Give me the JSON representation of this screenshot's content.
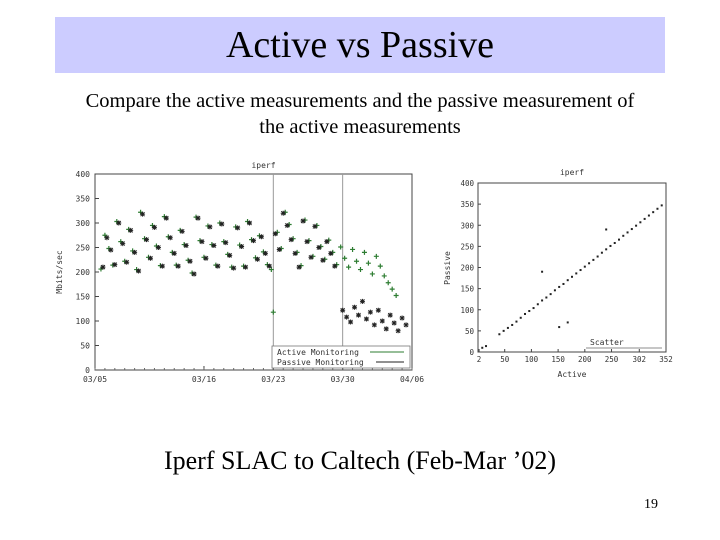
{
  "slide": {
    "title": "Active vs Passive",
    "subtitle_line1": "Compare the active measurements and the passive measurement of",
    "subtitle_line2": "the active measurements",
    "caption": "Iperf SLAC to Caltech (Feb-Mar ’02)",
    "page_number": "19"
  },
  "chart_data": [
    {
      "type": "scatter",
      "title": "iperf",
      "ylabel": "Mbits/sec",
      "xlabel": "",
      "ylim": [
        0,
        400
      ],
      "yticks": [
        "400",
        "350",
        "300",
        "250",
        "200",
        "150",
        "100",
        "50",
        "0"
      ],
      "xticks": [
        "03/05",
        "03/16",
        "03/23",
        "03/30",
        "04/06"
      ],
      "xlim_days": [
        0,
        32
      ],
      "vertical_markers_days": [
        18,
        25
      ],
      "grid": false,
      "legend_position": "bottom-right",
      "colors": {
        "active": "#2e7d32",
        "passive": "#222222"
      },
      "series": [
        {
          "name": "Active Monitoring",
          "marker": "plus",
          "points": [
            [
              0.6,
              206
            ],
            [
              1,
              275
            ],
            [
              1.4,
              248
            ],
            [
              1.8,
              214
            ],
            [
              2.2,
              303
            ],
            [
              2.6,
              262
            ],
            [
              3,
              222
            ],
            [
              3.4,
              287
            ],
            [
              3.8,
              243
            ],
            [
              4.2,
              205
            ],
            [
              4.6,
              322
            ],
            [
              5,
              268
            ],
            [
              5.4,
              230
            ],
            [
              5.8,
              295
            ],
            [
              6.2,
              253
            ],
            [
              6.6,
              213
            ],
            [
              7,
              313
            ],
            [
              7.4,
              272
            ],
            [
              7.8,
              240
            ],
            [
              8.2,
              214
            ],
            [
              8.6,
              285
            ],
            [
              9,
              256
            ],
            [
              9.4,
              224
            ],
            [
              9.8,
              198
            ],
            [
              10.2,
              312
            ],
            [
              10.6,
              264
            ],
            [
              11,
              230
            ],
            [
              11.4,
              294
            ],
            [
              11.8,
              256
            ],
            [
              12.2,
              214
            ],
            [
              12.6,
              300
            ],
            [
              13,
              262
            ],
            [
              13.4,
              236
            ],
            [
              13.8,
              210
            ],
            [
              14.2,
              292
            ],
            [
              14.6,
              255
            ],
            [
              15,
              212
            ],
            [
              15.4,
              303
            ],
            [
              15.8,
              266
            ],
            [
              16.2,
              229
            ],
            [
              16.6,
              274
            ],
            [
              17,
              241
            ],
            [
              17.4,
              215
            ],
            [
              17.8,
              205
            ],
            [
              18,
              118
            ],
            [
              18.4,
              281
            ],
            [
              18.8,
              248
            ],
            [
              19.2,
              322
            ],
            [
              19.6,
              297
            ],
            [
              20,
              268
            ],
            [
              20.4,
              240
            ],
            [
              20.8,
              213
            ],
            [
              21.2,
              306
            ],
            [
              21.6,
              264
            ],
            [
              22,
              232
            ],
            [
              22.4,
              295
            ],
            [
              22.8,
              252
            ],
            [
              23.2,
              226
            ],
            [
              23.6,
              265
            ],
            [
              24,
              240
            ],
            [
              24.4,
              215
            ],
            [
              24.8,
              251
            ],
            [
              25.2,
              228
            ],
            [
              25.6,
              210
            ],
            [
              26,
              246
            ],
            [
              26.4,
              222
            ],
            [
              26.8,
              205
            ],
            [
              27.2,
              240
            ],
            [
              27.6,
              218
            ],
            [
              28,
              196
            ],
            [
              28.4,
              232
            ],
            [
              28.8,
              212
            ],
            [
              29.2,
              192
            ],
            [
              29.6,
              178
            ],
            [
              30,
              165
            ],
            [
              30.4,
              152
            ]
          ]
        },
        {
          "name": "Passive Monitoring",
          "marker": "star",
          "points": [
            [
              0.8,
              210
            ],
            [
              1.2,
              270
            ],
            [
              1.6,
              245
            ],
            [
              2,
              215
            ],
            [
              2.4,
              300
            ],
            [
              2.8,
              258
            ],
            [
              3.2,
              220
            ],
            [
              3.6,
              285
            ],
            [
              4,
              240
            ],
            [
              4.4,
              202
            ],
            [
              4.8,
              318
            ],
            [
              5.2,
              266
            ],
            [
              5.6,
              228
            ],
            [
              6,
              291
            ],
            [
              6.4,
              250
            ],
            [
              6.8,
              212
            ],
            [
              7.2,
              310
            ],
            [
              7.6,
              270
            ],
            [
              8,
              238
            ],
            [
              8.4,
              212
            ],
            [
              8.8,
              283
            ],
            [
              9.2,
              254
            ],
            [
              9.6,
              222
            ],
            [
              10,
              196
            ],
            [
              10.4,
              310
            ],
            [
              10.8,
              262
            ],
            [
              11.2,
              228
            ],
            [
              11.6,
              292
            ],
            [
              12,
              254
            ],
            [
              12.4,
              212
            ],
            [
              12.8,
              298
            ],
            [
              13.2,
              260
            ],
            [
              13.6,
              234
            ],
            [
              14,
              208
            ],
            [
              14.4,
              290
            ],
            [
              14.8,
              252
            ],
            [
              15.2,
              210
            ],
            [
              15.6,
              300
            ],
            [
              16,
              264
            ],
            [
              16.4,
              226
            ],
            [
              16.8,
              272
            ],
            [
              17.2,
              238
            ],
            [
              17.6,
              212
            ],
            [
              18.2,
              278
            ],
            [
              18.6,
              246
            ],
            [
              19,
              320
            ],
            [
              19.4,
              295
            ],
            [
              19.8,
              266
            ],
            [
              20.2,
              238
            ],
            [
              20.6,
              210
            ],
            [
              21,
              304
            ],
            [
              21.4,
              262
            ],
            [
              21.8,
              230
            ],
            [
              22.2,
              293
            ],
            [
              22.6,
              250
            ],
            [
              23,
              224
            ],
            [
              23.4,
              262
            ],
            [
              23.8,
              238
            ],
            [
              24.2,
              212
            ],
            [
              25,
              122
            ],
            [
              25.4,
              108
            ],
            [
              25.8,
              98
            ],
            [
              26.2,
              128
            ],
            [
              26.6,
              112
            ],
            [
              27,
              140
            ],
            [
              27.4,
              104
            ],
            [
              27.8,
              118
            ],
            [
              28.2,
              92
            ],
            [
              28.6,
              122
            ],
            [
              29,
              100
            ],
            [
              29.4,
              84
            ],
            [
              29.8,
              112
            ],
            [
              30.2,
              96
            ],
            [
              30.6,
              80
            ],
            [
              31,
              106
            ],
            [
              31.4,
              92
            ]
          ]
        }
      ]
    },
    {
      "type": "scatter",
      "title": "iperf",
      "xlabel": "Active",
      "ylabel": "Passive",
      "xlim": [
        0,
        352
      ],
      "ylim": [
        0,
        400
      ],
      "xticks": [
        "2",
        "50",
        "100",
        "150",
        "200",
        "250",
        "302",
        "352"
      ],
      "yticks": [
        "400",
        "350",
        "300",
        "250",
        "200",
        "150",
        "100",
        "50",
        "0"
      ],
      "grid": false,
      "legend_position": "bottom-right",
      "colors": {
        "points": "#222222"
      },
      "series": [
        {
          "name": "Scatter",
          "points": [
            [
              8,
              10
            ],
            [
              15,
              14
            ],
            [
              40,
              42
            ],
            [
              48,
              50
            ],
            [
              56,
              57
            ],
            [
              64,
              64
            ],
            [
              72,
              72
            ],
            [
              80,
              81
            ],
            [
              88,
              90
            ],
            [
              96,
              97
            ],
            [
              104,
              104
            ],
            [
              112,
              113
            ],
            [
              120,
              122
            ],
            [
              128,
              129
            ],
            [
              136,
              137
            ],
            [
              144,
              146
            ],
            [
              152,
              154
            ],
            [
              160,
              161
            ],
            [
              168,
              170
            ],
            [
              176,
              178
            ],
            [
              184,
              186
            ],
            [
              192,
              194
            ],
            [
              200,
              202
            ],
            [
              208,
              210
            ],
            [
              216,
              218
            ],
            [
              224,
              226
            ],
            [
              232,
              235
            ],
            [
              240,
              243
            ],
            [
              248,
              251
            ],
            [
              256,
              258
            ],
            [
              264,
              266
            ],
            [
              272,
              275
            ],
            [
              280,
              283
            ],
            [
              288,
              291
            ],
            [
              296,
              299
            ],
            [
              304,
              307
            ],
            [
              312,
              315
            ],
            [
              320,
              323
            ],
            [
              328,
              331
            ],
            [
              336,
              339
            ],
            [
              344,
              347
            ],
            [
              120,
              190
            ],
            [
              152,
              59
            ],
            [
              168,
              70
            ],
            [
              240,
              290
            ]
          ]
        }
      ]
    }
  ]
}
